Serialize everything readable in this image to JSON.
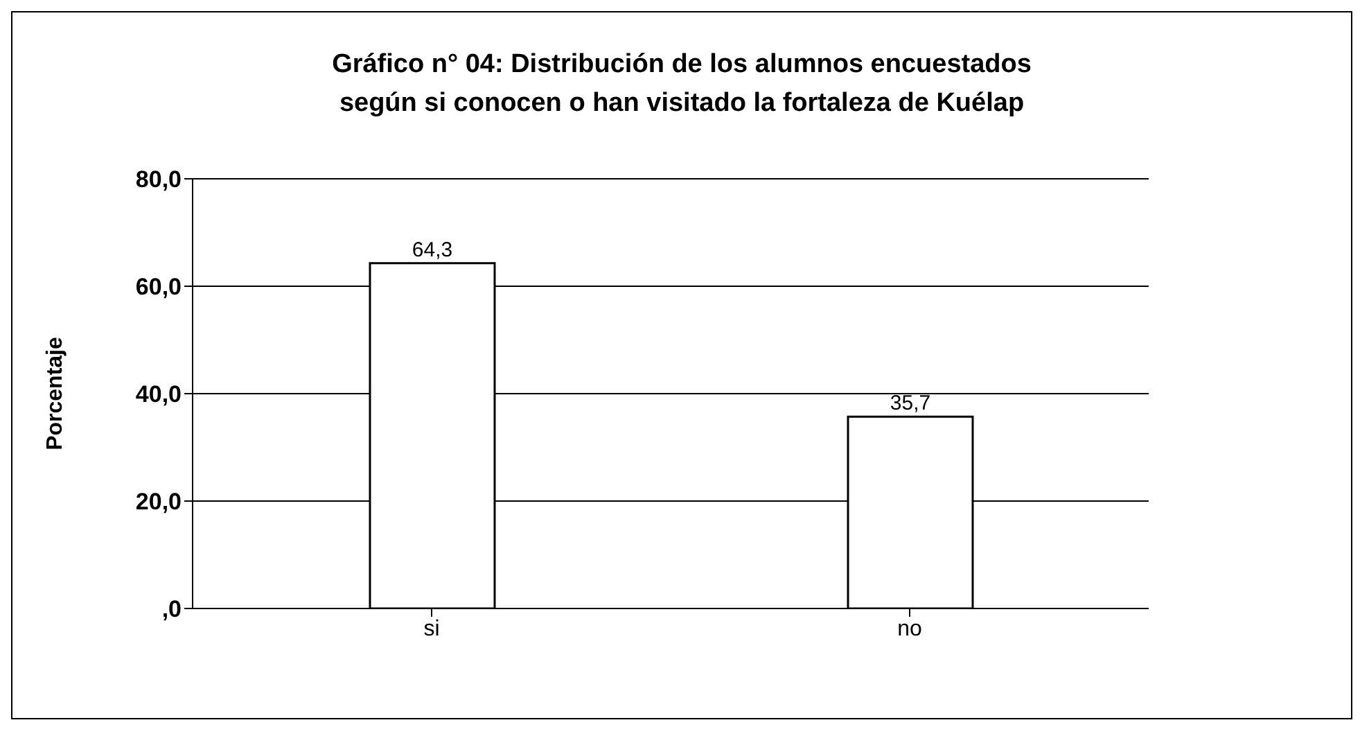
{
  "chart_data": {
    "type": "bar",
    "title": "Gráfico n° 04: Distribución de los alumnos encuestados según si conocen o han visitado la fortaleza de Kuélap",
    "ylabel": "Porcentaje",
    "categories": [
      "si",
      "no"
    ],
    "values": [
      64.3,
      35.7
    ],
    "color": "#ffffff",
    "value_labels": [
      "64,3",
      "35,7"
    ],
    "ylim": [
      0,
      80
    ],
    "yticks": [
      {
        "value": 0,
        "label": ",0"
      },
      {
        "value": 20,
        "label": "20,0"
      },
      {
        "value": 40,
        "label": "40,0"
      },
      {
        "value": 60,
        "label": "60,0"
      },
      {
        "value": 80,
        "label": "80,0"
      }
    ],
    "grid": "y",
    "legend": false
  }
}
